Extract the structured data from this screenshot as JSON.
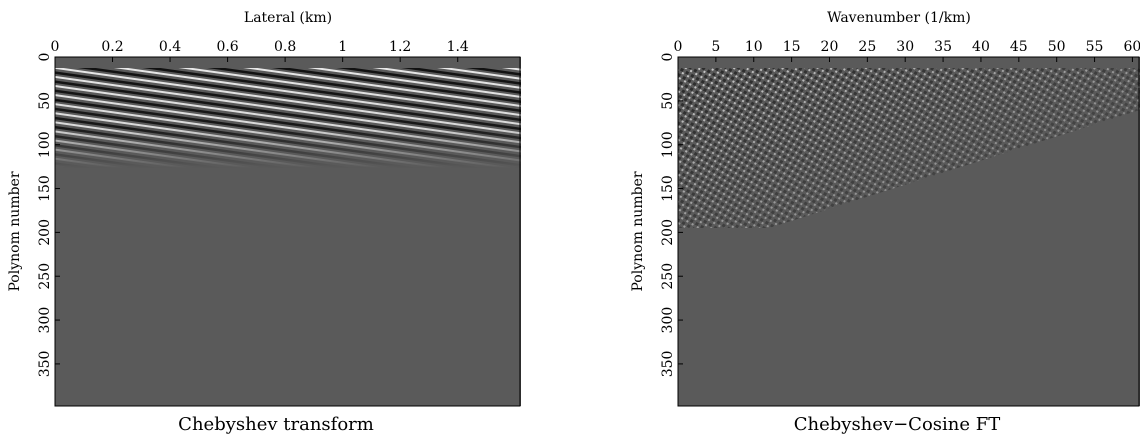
{
  "chart_data": [
    {
      "type": "image",
      "title": "Chebyshev transform",
      "xlabel": "Lateral (km)",
      "ylabel": "Polynom number",
      "xlim": [
        0,
        1.62
      ],
      "xticks": [
        0,
        0.2,
        0.4,
        0.6,
        0.8,
        1,
        1.2,
        1.4
      ],
      "ylim": [
        0,
        398
      ],
      "yticks": [
        0,
        50,
        100,
        150,
        200,
        250,
        300,
        350
      ],
      "color": "#5a5a5a"
    },
    {
      "type": "image",
      "title": "Chebyshev−Cosine FT",
      "xlabel": "Wavenumber (1/km)",
      "ylabel": "Polynom number",
      "xlim": [
        0,
        61
      ],
      "xticks": [
        0,
        5,
        10,
        15,
        20,
        25,
        30,
        35,
        40,
        45,
        50,
        55,
        60
      ],
      "ylim": [
        0,
        398
      ],
      "yticks": [
        0,
        50,
        100,
        150,
        200,
        250,
        300,
        350
      ],
      "color": "#5a5a5a"
    }
  ]
}
